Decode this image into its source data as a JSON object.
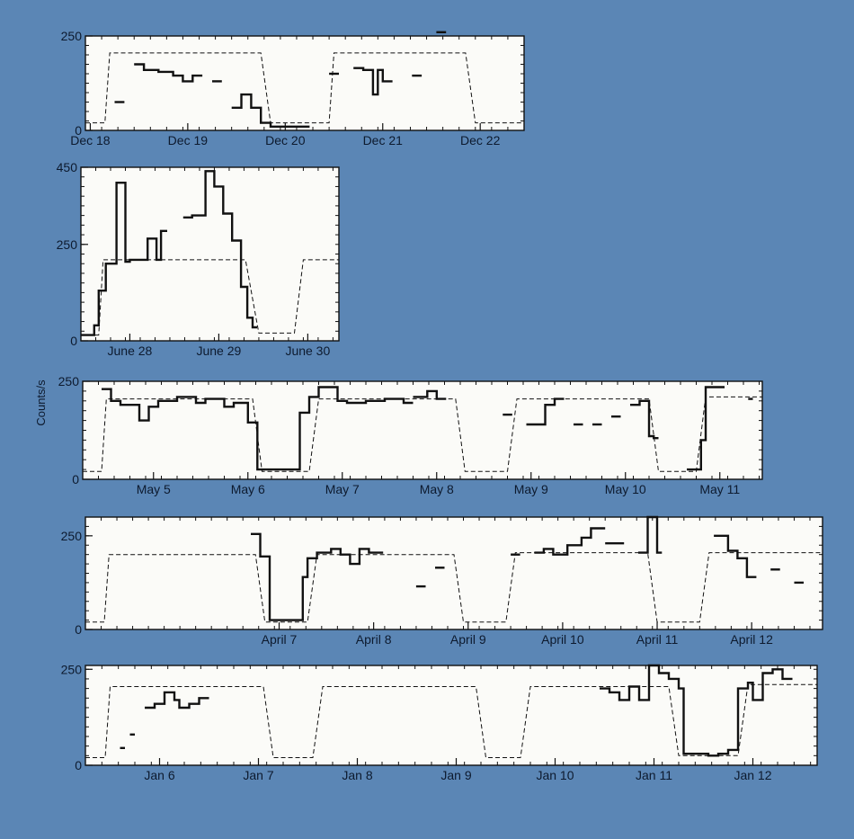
{
  "chart_data": [
    {
      "type": "line",
      "ylabel": "",
      "ylim": [
        0,
        250
      ],
      "yticks": [
        "0",
        "250"
      ],
      "xlim": [
        0,
        4.5
      ],
      "xtick_labels": [
        "Dec 18",
        "Dec 19",
        "Dec 20",
        "Dec 21",
        "Dec 22"
      ],
      "xtick_positions": [
        0.05,
        1.05,
        2.05,
        3.05,
        4.05
      ],
      "series": [
        {
          "style": "dashed",
          "x": [
            0,
            0.2,
            0.25,
            1.8,
            1.9,
            2.5,
            2.55,
            3.9,
            4.0,
            4.5
          ],
          "y": [
            20,
            20,
            205,
            205,
            20,
            20,
            205,
            205,
            20,
            20
          ]
        },
        {
          "style": "solid",
          "x": [
            0.3,
            0.4
          ],
          "y": [
            75,
            75
          ]
        },
        {
          "style": "solid",
          "x": [
            0.5,
            0.6,
            0.6,
            0.75,
            0.75,
            0.9,
            0.9,
            1.0,
            1.0,
            1.1,
            1.1,
            1.2
          ],
          "y": [
            175,
            175,
            160,
            160,
            155,
            155,
            145,
            145,
            130,
            130,
            145,
            145
          ]
        },
        {
          "style": "solid",
          "x": [
            1.3,
            1.4
          ],
          "y": [
            130,
            130
          ]
        },
        {
          "style": "solid",
          "x": [
            1.5,
            1.6,
            1.6,
            1.7,
            1.7,
            1.8,
            1.8,
            1.9,
            1.9,
            2.3
          ],
          "y": [
            60,
            60,
            95,
            95,
            60,
            60,
            20,
            20,
            10,
            10
          ]
        },
        {
          "style": "solid",
          "x": [
            2.5,
            2.6
          ],
          "y": [
            150,
            150
          ]
        },
        {
          "style": "solid",
          "x": [
            2.75,
            2.85,
            2.85,
            2.95,
            2.95,
            3.0,
            3.0,
            3.05,
            3.05,
            3.15
          ],
          "y": [
            165,
            165,
            160,
            160,
            95,
            95,
            160,
            160,
            130,
            130
          ]
        },
        {
          "style": "solid",
          "x": [
            3.35,
            3.45
          ],
          "y": [
            145,
            145
          ]
        },
        {
          "style": "solid",
          "x": [
            3.6,
            3.7
          ],
          "y": [
            260,
            260
          ]
        }
      ]
    },
    {
      "type": "line",
      "ylabel": "",
      "ylim": [
        0,
        450
      ],
      "yticks": [
        "0",
        "250",
        "450"
      ],
      "xlim": [
        0,
        2.9
      ],
      "xtick_labels": [
        "June 28",
        "June 29",
        "June 30"
      ],
      "xtick_positions": [
        0.55,
        1.55,
        2.55
      ],
      "series": [
        {
          "style": "dashed",
          "x": [
            0,
            0.2,
            0.25,
            1.85,
            2.0,
            2.4,
            2.5,
            2.9
          ],
          "y": [
            15,
            15,
            210,
            210,
            20,
            20,
            210,
            210
          ]
        },
        {
          "style": "solid",
          "x": [
            0,
            0.15,
            0.15,
            0.2,
            0.2,
            0.28,
            0.28,
            0.4,
            0.4,
            0.5,
            0.5,
            0.55,
            0.55,
            0.75,
            0.75,
            0.85,
            0.85,
            0.9,
            0.9,
            0.97
          ],
          "y": [
            15,
            15,
            40,
            40,
            130,
            130,
            200,
            200,
            410,
            410,
            205,
            205,
            210,
            210,
            265,
            265,
            210,
            210,
            285,
            285
          ]
        },
        {
          "style": "solid",
          "x": [
            1.15,
            1.25,
            1.25,
            1.4,
            1.4,
            1.5,
            1.5,
            1.6,
            1.6,
            1.7,
            1.7,
            1.8,
            1.8,
            1.87,
            1.87,
            1.93,
            1.93,
            1.98
          ],
          "y": [
            320,
            320,
            325,
            325,
            440,
            440,
            400,
            400,
            330,
            330,
            260,
            260,
            140,
            140,
            60,
            60,
            35,
            35
          ]
        }
      ]
    },
    {
      "type": "line",
      "ylabel": "Counts/s",
      "ylim": [
        0,
        250
      ],
      "yticks": [
        "0",
        "250"
      ],
      "xlim": [
        0,
        7.2
      ],
      "xtick_labels": [
        "May 5",
        "May 6",
        "May 7",
        "May 8",
        "May 9",
        "May 10",
        "May 11"
      ],
      "xtick_positions": [
        0.75,
        1.75,
        2.75,
        3.75,
        4.75,
        5.75,
        6.75
      ],
      "series": [
        {
          "style": "dashed",
          "x": [
            0,
            0.2,
            0.25,
            1.8,
            1.9,
            2.4,
            2.5,
            3.95,
            4.05,
            4.5,
            4.6,
            6.0,
            6.1,
            6.5,
            6.6,
            7.2
          ],
          "y": [
            20,
            20,
            205,
            205,
            20,
            20,
            205,
            205,
            20,
            20,
            205,
            205,
            20,
            20,
            210,
            210
          ]
        },
        {
          "style": "solid",
          "x": [
            0.2,
            0.3,
            0.3,
            0.4,
            0.4,
            0.6,
            0.6,
            0.7,
            0.7,
            0.8,
            0.8,
            1.0,
            1.0,
            1.2,
            1.2,
            1.3,
            1.3,
            1.5,
            1.5,
            1.6,
            1.6,
            1.75,
            1.75,
            1.85,
            1.85,
            2.3,
            2.3,
            2.4,
            2.4,
            2.5,
            2.5,
            2.7,
            2.7,
            2.8,
            2.8,
            3.0,
            3.0,
            3.2,
            3.2,
            3.4,
            3.4,
            3.5
          ],
          "y": [
            230,
            230,
            200,
            200,
            190,
            190,
            150,
            150,
            185,
            185,
            200,
            200,
            210,
            210,
            195,
            195,
            205,
            205,
            185,
            185,
            195,
            195,
            145,
            145,
            25,
            25,
            170,
            170,
            210,
            210,
            235,
            235,
            200,
            200,
            195,
            195,
            200,
            200,
            205,
            205,
            195,
            195
          ]
        },
        {
          "style": "solid",
          "x": [
            3.5,
            3.65,
            3.65,
            3.75,
            3.75,
            3.85
          ],
          "y": [
            210,
            210,
            225,
            225,
            205,
            205
          ]
        },
        {
          "style": "solid",
          "x": [
            4.45,
            4.55
          ],
          "y": [
            165,
            165
          ]
        },
        {
          "style": "solid",
          "x": [
            4.7,
            4.9,
            4.9,
            5.0,
            5.0,
            5.1
          ],
          "y": [
            140,
            140,
            190,
            190,
            205,
            205
          ]
        },
        {
          "style": "solid",
          "x": [
            5.2,
            5.3
          ],
          "y": [
            140,
            140
          ]
        },
        {
          "style": "solid",
          "x": [
            5.4,
            5.5
          ],
          "y": [
            140,
            140
          ]
        },
        {
          "style": "solid",
          "x": [
            5.6,
            5.7
          ],
          "y": [
            160,
            160
          ]
        },
        {
          "style": "solid",
          "x": [
            5.8,
            5.9,
            5.9,
            6.0,
            6.0,
            6.05,
            6.05,
            6.1
          ],
          "y": [
            190,
            190,
            200,
            200,
            110,
            110,
            105,
            105
          ]
        },
        {
          "style": "solid",
          "x": [
            6.4,
            6.55,
            6.55,
            6.6,
            6.6,
            6.8
          ],
          "y": [
            25,
            25,
            100,
            100,
            235,
            235
          ]
        },
        {
          "style": "solid",
          "x": [
            7.05,
            7.1
          ],
          "y": [
            205,
            205
          ]
        }
      ]
    },
    {
      "type": "line",
      "ylabel": "",
      "ylim": [
        0,
        300
      ],
      "yticks": [
        "0",
        "250"
      ],
      "xlim": [
        0,
        7.8
      ],
      "xtick_labels": [
        "April 7",
        "April 8",
        "April 9",
        "April 10",
        "April 11",
        "April 12"
      ],
      "xtick_positions": [
        2.05,
        3.05,
        4.05,
        5.05,
        6.05,
        7.05
      ],
      "series": [
        {
          "style": "dashed",
          "x": [
            0,
            0.2,
            0.25,
            1.8,
            1.9,
            2.35,
            2.45,
            3.9,
            4.0,
            4.45,
            4.55,
            5.95,
            6.05,
            6.5,
            6.6,
            7.8
          ],
          "y": [
            20,
            20,
            200,
            200,
            20,
            20,
            200,
            200,
            20,
            20,
            205,
            205,
            20,
            20,
            205,
            205
          ]
        },
        {
          "style": "solid",
          "x": [
            1.75,
            1.85,
            1.85,
            1.95,
            1.95,
            2.3,
            2.3,
            2.35,
            2.35,
            2.45,
            2.45,
            2.6,
            2.6,
            2.7,
            2.7,
            2.8,
            2.8,
            2.9,
            2.9,
            3.0,
            3.0,
            3.15
          ],
          "y": [
            255,
            255,
            195,
            195,
            25,
            25,
            140,
            140,
            190,
            190,
            205,
            205,
            215,
            215,
            200,
            200,
            175,
            175,
            215,
            215,
            205,
            205
          ]
        },
        {
          "style": "solid",
          "x": [
            3.5,
            3.6
          ],
          "y": [
            115,
            115
          ]
        },
        {
          "style": "solid",
          "x": [
            3.7,
            3.8
          ],
          "y": [
            165,
            165
          ]
        },
        {
          "style": "solid",
          "x": [
            4.5,
            4.6
          ],
          "y": [
            200,
            200
          ]
        },
        {
          "style": "solid",
          "x": [
            4.75,
            4.85,
            4.85,
            4.95,
            4.95,
            5.1,
            5.1,
            5.25,
            5.25,
            5.35,
            5.35,
            5.5
          ],
          "y": [
            205,
            205,
            215,
            215,
            200,
            200,
            225,
            225,
            245,
            245,
            270,
            270
          ]
        },
        {
          "style": "solid",
          "x": [
            5.5,
            5.7
          ],
          "y": [
            230,
            230
          ]
        },
        {
          "style": "solid",
          "x": [
            5.85,
            5.95,
            5.95,
            6.05,
            6.05,
            6.1
          ],
          "y": [
            205,
            205,
            300,
            300,
            205,
            205
          ]
        },
        {
          "style": "solid",
          "x": [
            6.65,
            6.8,
            6.8,
            6.9,
            6.9,
            7.0,
            7.0,
            7.1
          ],
          "y": [
            250,
            250,
            210,
            210,
            190,
            190,
            140,
            140
          ]
        },
        {
          "style": "solid",
          "x": [
            7.25,
            7.35
          ],
          "y": [
            160,
            160
          ]
        },
        {
          "style": "solid",
          "x": [
            7.5,
            7.6
          ],
          "y": [
            125,
            125
          ]
        }
      ]
    },
    {
      "type": "line",
      "ylabel": "",
      "ylim": [
        0,
        260
      ],
      "yticks": [
        "0",
        "250"
      ],
      "xlim": [
        0,
        7.4
      ],
      "xtick_labels": [
        "Jan 6",
        "Jan 7",
        "Jan 8",
        "Jan 9",
        "Jan 10",
        "Jan 11",
        "Jan 12"
      ],
      "xtick_positions": [
        0.75,
        1.75,
        2.75,
        3.75,
        4.75,
        5.75,
        6.75
      ],
      "series": [
        {
          "style": "dashed",
          "x": [
            0,
            0.2,
            0.25,
            1.8,
            1.9,
            2.3,
            2.4,
            3.95,
            4.05,
            4.4,
            4.5,
            5.9,
            6.0,
            6.6,
            6.7,
            7.4
          ],
          "y": [
            20,
            20,
            205,
            205,
            20,
            20,
            205,
            205,
            20,
            20,
            205,
            205,
            25,
            25,
            210,
            210
          ]
        },
        {
          "style": "solid",
          "x": [
            0.35,
            0.4
          ],
          "y": [
            45,
            45
          ]
        },
        {
          "style": "solid",
          "x": [
            0.45,
            0.5
          ],
          "y": [
            80,
            80
          ]
        },
        {
          "style": "solid",
          "x": [
            0.6,
            0.7,
            0.7,
            0.8,
            0.8,
            0.9,
            0.9,
            0.95,
            0.95,
            1.05,
            1.05,
            1.15,
            1.15,
            1.25
          ],
          "y": [
            150,
            150,
            160,
            160,
            190,
            190,
            170,
            170,
            150,
            150,
            160,
            160,
            175,
            175
          ]
        },
        {
          "style": "solid",
          "x": [
            5.2,
            5.3,
            5.3,
            5.4,
            5.4,
            5.5,
            5.5,
            5.6,
            5.6,
            5.7,
            5.7,
            5.8,
            5.8,
            5.9,
            5.9,
            6.0,
            6.0,
            6.05,
            6.05,
            6.3,
            6.3,
            6.4,
            6.4,
            6.5,
            6.5,
            6.6,
            6.6,
            6.7,
            6.7,
            6.75,
            6.75,
            6.85,
            6.85,
            6.95,
            6.95,
            7.05,
            7.05,
            7.15
          ],
          "y": [
            200,
            200,
            190,
            190,
            170,
            170,
            205,
            205,
            170,
            170,
            260,
            260,
            240,
            240,
            225,
            225,
            200,
            200,
            30,
            30,
            25,
            25,
            30,
            30,
            40,
            40,
            200,
            200,
            215,
            215,
            170,
            170,
            240,
            240,
            250,
            250,
            225,
            225
          ]
        }
      ]
    }
  ]
}
